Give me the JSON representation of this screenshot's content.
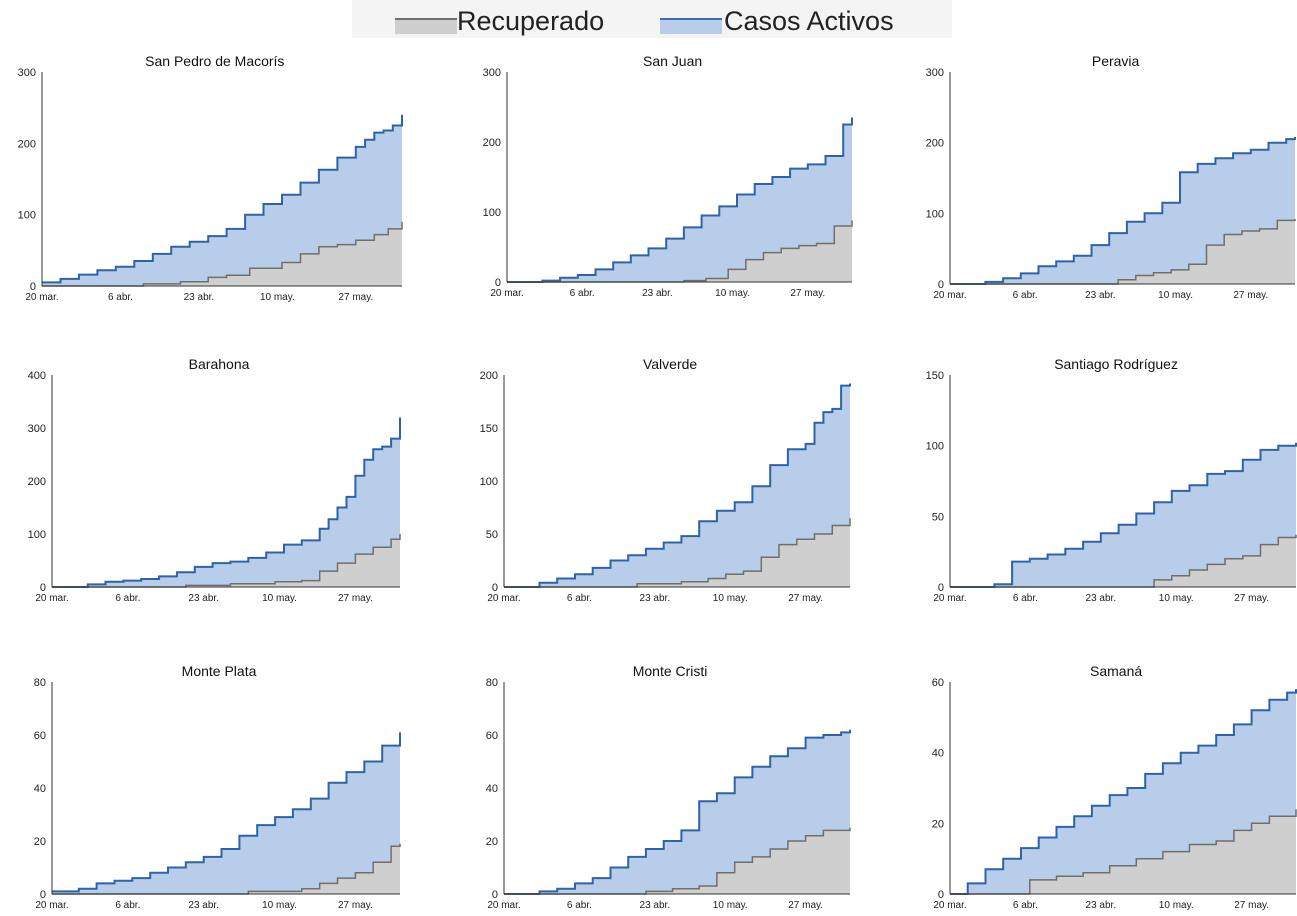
{
  "legend": {
    "items": [
      {
        "label": "Recuperado",
        "color": "#cfcfcf",
        "stroke": "#6f6f6f"
      },
      {
        "label": "Casos Activos",
        "color": "#b7cde9",
        "stroke": "#3d6fae"
      }
    ]
  },
  "colors": {
    "recovered_fill": "#cfcfcf",
    "recovered_line": "#6f6f6f",
    "active_fill": "#b7cde9",
    "active_line": "#2f63a8",
    "axis": "#333333"
  },
  "chart_data": [
    {
      "type": "area",
      "title": "San Pedro de Macorís",
      "ylim": [
        0,
        300
      ],
      "yticks": [
        0,
        100,
        200,
        300
      ],
      "x_ticks": [
        "20 mar.",
        "6 abr.",
        "23 abr.",
        "10 may.",
        "27 may."
      ],
      "x_tick_days": [
        0,
        17,
        34,
        51,
        68
      ],
      "series": [
        {
          "name": "Recuperado",
          "x": [
            0,
            15,
            22,
            30,
            36,
            40,
            45,
            52,
            56,
            60,
            64,
            68,
            72,
            75,
            78
          ],
          "y": [
            0,
            0,
            3,
            6,
            12,
            15,
            25,
            33,
            45,
            55,
            58,
            64,
            72,
            80,
            90
          ]
        },
        {
          "name": "Casos Activos",
          "x": [
            0,
            4,
            8,
            12,
            16,
            20,
            24,
            28,
            32,
            36,
            40,
            44,
            48,
            52,
            56,
            60,
            64,
            68,
            70,
            72,
            74,
            76,
            78
          ],
          "y": [
            5,
            10,
            16,
            22,
            27,
            35,
            45,
            55,
            62,
            70,
            80,
            100,
            115,
            128,
            145,
            163,
            180,
            195,
            205,
            215,
            218,
            225,
            240
          ]
        }
      ]
    },
    {
      "type": "area",
      "title": "San Juan",
      "ylim": [
        0,
        300
      ],
      "yticks": [
        0,
        100,
        200,
        300
      ],
      "x_ticks": [
        "20 mar.",
        "6 abr.",
        "23 abr.",
        "10 may.",
        "27 may."
      ],
      "x_tick_days": [
        0,
        17,
        34,
        51,
        68
      ],
      "series": [
        {
          "name": "Recuperado",
          "x": [
            0,
            30,
            40,
            45,
            50,
            54,
            58,
            62,
            66,
            70,
            74,
            78
          ],
          "y": [
            0,
            0,
            2,
            5,
            18,
            32,
            42,
            48,
            52,
            55,
            80,
            88
          ]
        },
        {
          "name": "Casos Activos",
          "x": [
            0,
            8,
            12,
            16,
            20,
            24,
            28,
            32,
            36,
            40,
            44,
            48,
            52,
            56,
            60,
            64,
            68,
            72,
            76,
            78
          ],
          "y": [
            0,
            2,
            6,
            10,
            18,
            28,
            38,
            48,
            62,
            78,
            95,
            108,
            125,
            140,
            150,
            162,
            168,
            180,
            225,
            235
          ]
        }
      ]
    },
    {
      "type": "area",
      "title": "Peravia",
      "ylim": [
        0,
        300
      ],
      "yticks": [
        0,
        100,
        200,
        300
      ],
      "x_ticks": [
        "20 mar.",
        "6 abr.",
        "23 abr.",
        "10 may.",
        "27 may."
      ],
      "x_tick_days": [
        0,
        17,
        34,
        51,
        68
      ],
      "series": [
        {
          "name": "Recuperado",
          "x": [
            0,
            34,
            38,
            42,
            46,
            50,
            54,
            58,
            62,
            66,
            70,
            74,
            78
          ],
          "y": [
            0,
            0,
            6,
            12,
            16,
            20,
            28,
            55,
            70,
            75,
            78,
            90,
            92
          ]
        },
        {
          "name": "Casos Activos",
          "x": [
            0,
            8,
            12,
            16,
            20,
            24,
            28,
            32,
            36,
            40,
            44,
            48,
            52,
            56,
            60,
            64,
            68,
            72,
            76,
            78
          ],
          "y": [
            0,
            3,
            8,
            15,
            25,
            32,
            40,
            55,
            72,
            88,
            100,
            115,
            158,
            170,
            178,
            185,
            190,
            200,
            205,
            208
          ]
        }
      ]
    },
    {
      "type": "area",
      "title": "Barahona",
      "ylim": [
        0,
        400
      ],
      "yticks": [
        0,
        100,
        200,
        300,
        400
      ],
      "x_ticks": [
        "20 mar.",
        "6 abr.",
        "23 abr.",
        "10 may.",
        "27 may."
      ],
      "x_tick_days": [
        0,
        17,
        34,
        51,
        68
      ],
      "series": [
        {
          "name": "Recuperado",
          "x": [
            0,
            20,
            30,
            40,
            50,
            56,
            60,
            64,
            68,
            72,
            76,
            78
          ],
          "y": [
            0,
            0,
            3,
            6,
            10,
            12,
            30,
            45,
            62,
            75,
            90,
            100
          ]
        },
        {
          "name": "Casos Activos",
          "x": [
            0,
            8,
            12,
            16,
            20,
            24,
            28,
            32,
            36,
            40,
            44,
            48,
            52,
            56,
            60,
            62,
            64,
            66,
            68,
            70,
            72,
            74,
            76,
            78
          ],
          "y": [
            0,
            5,
            10,
            12,
            15,
            20,
            28,
            38,
            45,
            48,
            55,
            65,
            80,
            88,
            110,
            128,
            150,
            170,
            210,
            240,
            260,
            265,
            280,
            320
          ]
        }
      ]
    },
    {
      "type": "area",
      "title": "Valverde",
      "ylim": [
        0,
        200
      ],
      "yticks": [
        0,
        50,
        100,
        150,
        200
      ],
      "x_ticks": [
        "20 mar.",
        "6 abr.",
        "23 abr.",
        "10 may.",
        "27 may."
      ],
      "x_tick_days": [
        0,
        17,
        34,
        51,
        68
      ],
      "series": [
        {
          "name": "Recuperado",
          "x": [
            0,
            20,
            30,
            40,
            46,
            50,
            54,
            58,
            62,
            66,
            70,
            74,
            78
          ],
          "y": [
            0,
            0,
            3,
            5,
            8,
            12,
            15,
            28,
            40,
            45,
            50,
            58,
            65
          ]
        },
        {
          "name": "Casos Activos",
          "x": [
            0,
            8,
            12,
            16,
            20,
            24,
            28,
            32,
            36,
            40,
            44,
            48,
            52,
            56,
            60,
            64,
            68,
            70,
            72,
            74,
            76,
            78
          ],
          "y": [
            0,
            4,
            8,
            12,
            18,
            25,
            30,
            36,
            42,
            48,
            62,
            72,
            80,
            95,
            115,
            130,
            135,
            155,
            165,
            168,
            190,
            192
          ]
        }
      ]
    },
    {
      "type": "area",
      "title": "Santiago Rodríguez",
      "ylim": [
        0,
        150
      ],
      "yticks": [
        0,
        50,
        100,
        150
      ],
      "x_ticks": [
        "20 mar.",
        "6 abr.",
        "23 abr.",
        "10 may.",
        "27 may."
      ],
      "x_tick_days": [
        0,
        17,
        34,
        51,
        68
      ],
      "series": [
        {
          "name": "Recuperado",
          "x": [
            0,
            44,
            46,
            50,
            54,
            58,
            62,
            66,
            70,
            74,
            78
          ],
          "y": [
            0,
            0,
            5,
            8,
            12,
            16,
            20,
            22,
            30,
            35,
            37
          ]
        },
        {
          "name": "Casos Activos",
          "x": [
            0,
            10,
            14,
            18,
            22,
            26,
            30,
            34,
            38,
            42,
            46,
            50,
            54,
            58,
            62,
            66,
            70,
            74,
            78
          ],
          "y": [
            0,
            2,
            18,
            20,
            23,
            27,
            32,
            38,
            44,
            52,
            60,
            68,
            72,
            80,
            82,
            90,
            97,
            100,
            102
          ]
        }
      ]
    },
    {
      "type": "area",
      "title": "Monte Plata",
      "ylim": [
        0,
        80
      ],
      "yticks": [
        0,
        20,
        40,
        60,
        80
      ],
      "x_ticks": [
        "20 mar.",
        "6 abr.",
        "23 abr.",
        "10 may.",
        "27 may."
      ],
      "x_tick_days": [
        0,
        17,
        34,
        51,
        68
      ],
      "series": [
        {
          "name": "Recuperado",
          "x": [
            0,
            40,
            44,
            50,
            56,
            60,
            64,
            68,
            72,
            76,
            78
          ],
          "y": [
            0,
            0,
            1,
            1,
            2,
            4,
            6,
            8,
            12,
            18,
            19
          ]
        },
        {
          "name": "Casos Activos",
          "x": [
            0,
            6,
            10,
            14,
            18,
            22,
            26,
            30,
            34,
            38,
            42,
            46,
            50,
            54,
            58,
            62,
            66,
            70,
            74,
            78
          ],
          "y": [
            1,
            2,
            4,
            5,
            6,
            8,
            10,
            12,
            14,
            17,
            22,
            26,
            29,
            32,
            36,
            42,
            46,
            50,
            56,
            61
          ]
        }
      ]
    },
    {
      "type": "area",
      "title": "Monte Cristi",
      "ylim": [
        0,
        80
      ],
      "yticks": [
        0,
        20,
        40,
        60,
        80
      ],
      "x_ticks": [
        "20 mar.",
        "6 abr.",
        "23 abr.",
        "10 may.",
        "27 may."
      ],
      "x_tick_days": [
        0,
        17,
        34,
        51,
        68
      ],
      "series": [
        {
          "name": "Recuperado",
          "x": [
            0,
            28,
            32,
            38,
            44,
            48,
            52,
            56,
            60,
            64,
            68,
            72,
            78
          ],
          "y": [
            0,
            0,
            1,
            2,
            3,
            8,
            12,
            14,
            17,
            20,
            22,
            24,
            25
          ]
        },
        {
          "name": "Casos Activos",
          "x": [
            0,
            8,
            12,
            16,
            20,
            24,
            28,
            32,
            36,
            40,
            44,
            48,
            52,
            56,
            60,
            64,
            68,
            72,
            76,
            78
          ],
          "y": [
            0,
            1,
            2,
            4,
            6,
            10,
            14,
            17,
            20,
            24,
            35,
            38,
            44,
            48,
            52,
            55,
            59,
            60,
            61,
            62
          ]
        }
      ]
    },
    {
      "type": "area",
      "title": "Samaná",
      "ylim": [
        0,
        60
      ],
      "yticks": [
        0,
        20,
        40,
        60
      ],
      "x_ticks": [
        "20 mar.",
        "6 abr.",
        "23 abr.",
        "10 may.",
        "27 may."
      ],
      "x_tick_days": [
        0,
        17,
        34,
        51,
        68
      ],
      "series": [
        {
          "name": "Recuperado",
          "x": [
            0,
            14,
            18,
            24,
            30,
            36,
            42,
            48,
            54,
            60,
            64,
            68,
            72,
            78
          ],
          "y": [
            0,
            0,
            4,
            5,
            6,
            8,
            10,
            12,
            14,
            15,
            18,
            20,
            22,
            24
          ]
        },
        {
          "name": "Casos Activos",
          "x": [
            0,
            4,
            8,
            12,
            16,
            20,
            24,
            28,
            32,
            36,
            40,
            44,
            48,
            52,
            56,
            60,
            64,
            68,
            72,
            76,
            78
          ],
          "y": [
            0,
            3,
            7,
            10,
            13,
            16,
            19,
            22,
            25,
            28,
            30,
            34,
            37,
            40,
            42,
            45,
            48,
            52,
            55,
            57,
            58
          ]
        }
      ]
    }
  ]
}
